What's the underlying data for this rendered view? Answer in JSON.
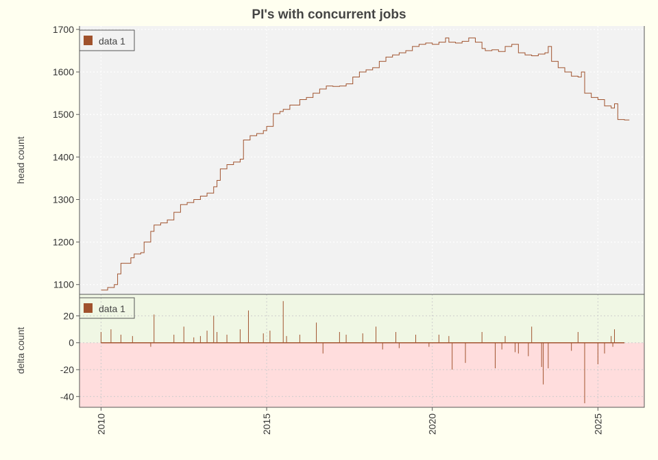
{
  "chart_data": [
    {
      "type": "line",
      "title": "PI's with concurrent jobs",
      "ylabel": "head count",
      "xlabel": "",
      "ylim": [
        1077,
        1708
      ],
      "xlim": [
        2009.35,
        2026.4
      ],
      "yticks": [
        1100,
        1200,
        1300,
        1400,
        1500,
        1600,
        1700
      ],
      "grid": true,
      "background": "#f2f2f2",
      "legend": {
        "placement": "top-left",
        "entries": [
          "data 1"
        ]
      },
      "series": [
        {
          "name": "data 1",
          "color": "#a0522d",
          "x": [
            2010.0,
            2010.2,
            2010.4,
            2010.5,
            2010.6,
            2010.9,
            2011.0,
            2011.2,
            2011.3,
            2011.5,
            2011.6,
            2011.8,
            2012.0,
            2012.2,
            2012.4,
            2012.6,
            2012.8,
            2013.0,
            2013.2,
            2013.4,
            2013.5,
            2013.6,
            2013.8,
            2014.0,
            2014.2,
            2014.3,
            2014.5,
            2014.7,
            2014.9,
            2015.0,
            2015.2,
            2015.4,
            2015.5,
            2015.7,
            2016.0,
            2016.2,
            2016.4,
            2016.6,
            2016.8,
            2017.0,
            2017.2,
            2017.4,
            2017.6,
            2017.8,
            2018.0,
            2018.2,
            2018.4,
            2018.6,
            2018.8,
            2019.0,
            2019.2,
            2019.4,
            2019.6,
            2019.8,
            2020.0,
            2020.2,
            2020.4,
            2020.5,
            2020.7,
            2020.9,
            2021.1,
            2021.3,
            2021.5,
            2021.6,
            2021.8,
            2022.0,
            2022.2,
            2022.4,
            2022.6,
            2022.8,
            2023.0,
            2023.2,
            2023.4,
            2023.5,
            2023.6,
            2023.8,
            2024.0,
            2024.2,
            2024.4,
            2024.5,
            2024.6,
            2024.8,
            2025.0,
            2025.2,
            2025.4,
            2025.5,
            2025.6,
            2025.8
          ],
          "values": [
            1087,
            1093,
            1100,
            1125,
            1150,
            1163,
            1172,
            1175,
            1200,
            1225,
            1240,
            1245,
            1252,
            1270,
            1288,
            1293,
            1300,
            1308,
            1315,
            1330,
            1345,
            1372,
            1382,
            1388,
            1395,
            1440,
            1450,
            1455,
            1462,
            1472,
            1502,
            1507,
            1512,
            1522,
            1535,
            1540,
            1550,
            1560,
            1567,
            1566,
            1567,
            1572,
            1588,
            1600,
            1605,
            1610,
            1625,
            1635,
            1640,
            1645,
            1650,
            1660,
            1665,
            1668,
            1665,
            1670,
            1680,
            1670,
            1668,
            1672,
            1680,
            1670,
            1655,
            1650,
            1652,
            1648,
            1660,
            1665,
            1645,
            1640,
            1638,
            1642,
            1645,
            1660,
            1625,
            1610,
            1600,
            1590,
            1588,
            1600,
            1550,
            1540,
            1535,
            1520,
            1515,
            1525,
            1488,
            1487
          ]
        }
      ]
    },
    {
      "type": "bar",
      "title": "",
      "ylabel": "delta count",
      "xlabel": "",
      "ylim": [
        -48,
        36
      ],
      "xlim": [
        2009.35,
        2026.4
      ],
      "yticks": [
        -40,
        -20,
        0,
        20
      ],
      "xticks": [
        "2010",
        "2015",
        "2020",
        "2025"
      ],
      "xtick_values": [
        2010,
        2015,
        2020,
        2025
      ],
      "grid": true,
      "positive_band_color": "#f0f7e4",
      "negative_band_color": "#ffdddd",
      "legend": {
        "placement": "top-left",
        "entries": [
          "data 1"
        ]
      },
      "series": [
        {
          "name": "data 1",
          "color": "#a0522d",
          "x": [
            2010.0,
            2010.3,
            2010.6,
            2010.95,
            2011.5,
            2011.6,
            2012.2,
            2012.5,
            2012.8,
            2013.0,
            2013.2,
            2013.4,
            2013.5,
            2013.8,
            2014.2,
            2014.45,
            2014.9,
            2015.1,
            2015.5,
            2015.6,
            2016.0,
            2016.5,
            2016.7,
            2017.2,
            2017.4,
            2017.9,
            2018.3,
            2018.5,
            2018.9,
            2019.0,
            2019.5,
            2019.9,
            2020.2,
            2020.5,
            2020.6,
            2021.0,
            2021.5,
            2021.9,
            2022.1,
            2022.2,
            2022.5,
            2022.6,
            2022.9,
            2023.0,
            2023.3,
            2023.35,
            2023.5,
            2024.2,
            2024.4,
            2024.6,
            2025.0,
            2025.2,
            2025.4,
            2025.45,
            2025.5
          ],
          "values": [
            8,
            10,
            6,
            5,
            -3,
            21,
            6,
            12,
            4,
            5,
            9,
            20,
            8,
            6,
            10,
            24,
            7,
            9,
            31,
            5,
            6,
            15,
            -8,
            8,
            6,
            7,
            12,
            -5,
            8,
            -4,
            6,
            -3,
            6,
            5,
            -20,
            -15,
            8,
            -19,
            -5,
            5,
            -7,
            -8,
            -10,
            12,
            -18,
            -31,
            -19,
            -6,
            8,
            -45,
            -16,
            -8,
            5,
            -3,
            10
          ]
        }
      ]
    }
  ]
}
